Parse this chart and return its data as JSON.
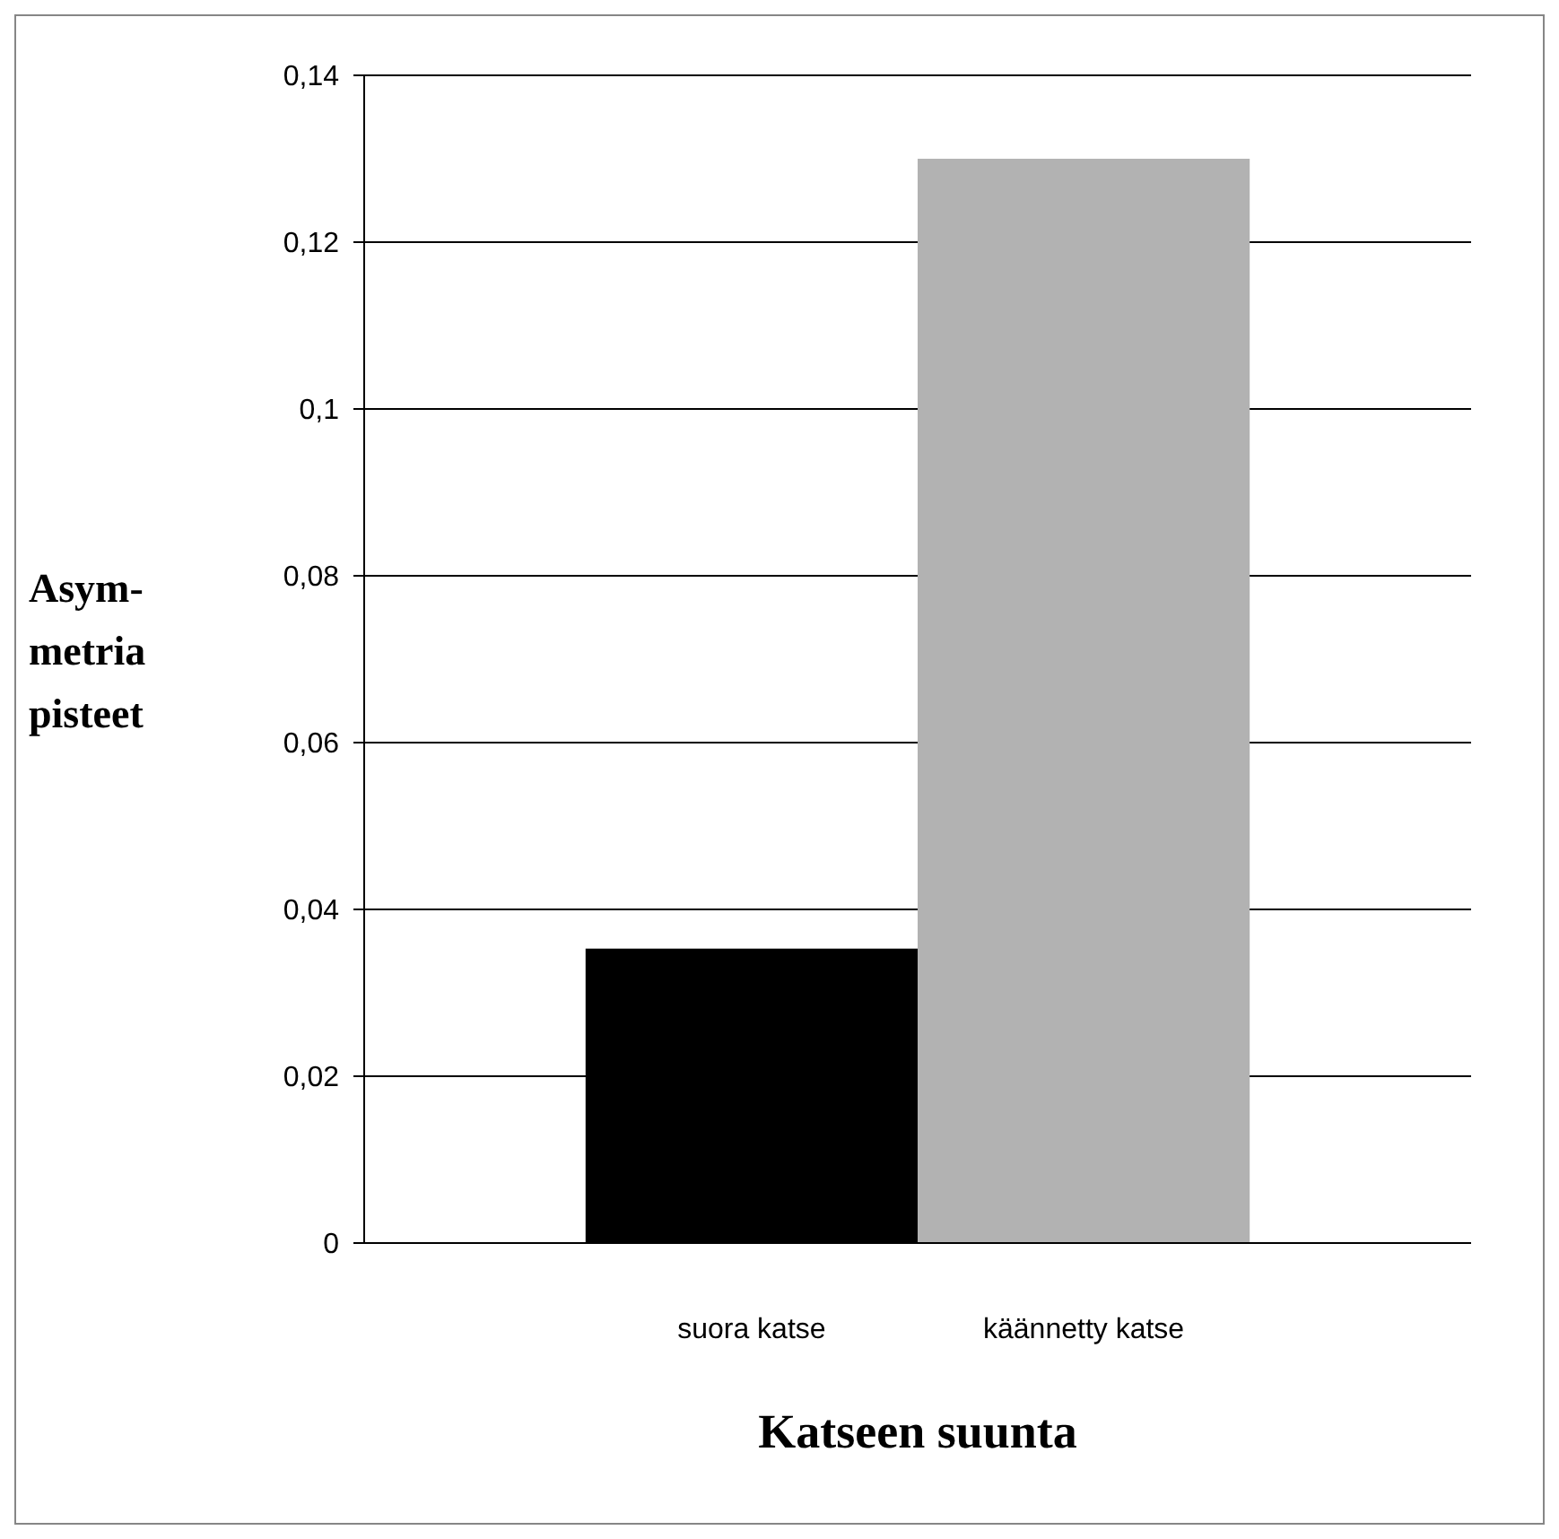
{
  "chart_data": {
    "type": "bar",
    "xlabel": "Katseen suunta",
    "ylabel": "Asym-\nmetria\npisteet",
    "categories": [
      "suora katse",
      "käännetty katse"
    ],
    "values": [
      0.0353,
      0.13
    ],
    "colors": [
      "#000000",
      "#b2b2b2"
    ],
    "ylim": [
      0,
      0.14
    ],
    "yticks": [
      0,
      {
        "value": 0.02,
        "label": "0,02"
      },
      {
        "value": 0.04,
        "label": "0,04"
      },
      {
        "value": 0.06,
        "label": "0,06"
      },
      {
        "value": 0.08,
        "label": "0,08"
      },
      {
        "value": 0.1,
        "label": "0,1"
      },
      {
        "value": 0.12,
        "label": "0,12"
      },
      {
        "value": 0.14,
        "label": "0,14"
      }
    ],
    "grid": "y"
  }
}
